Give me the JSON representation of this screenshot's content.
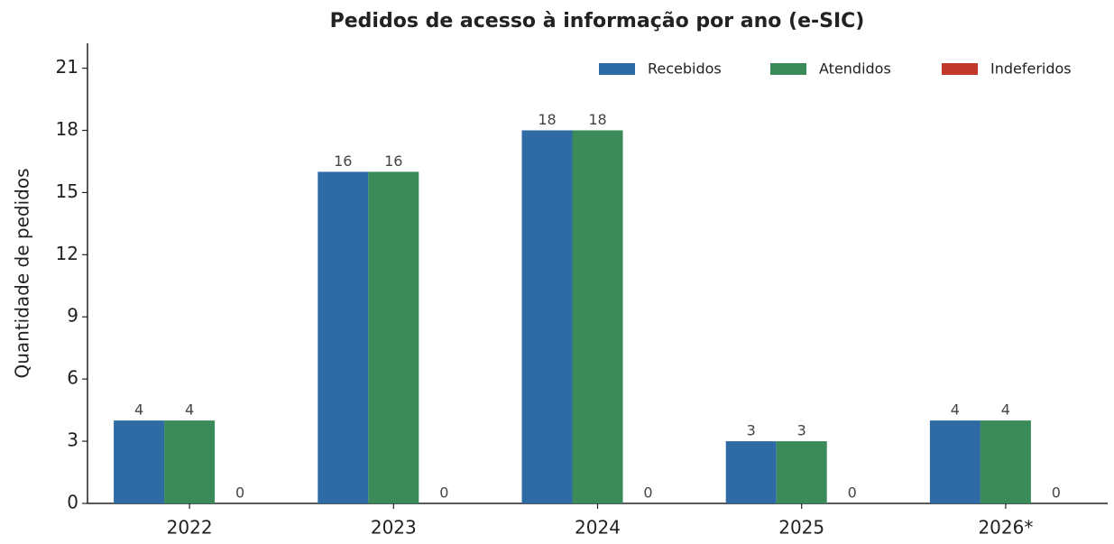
{
  "chart_data": {
    "type": "bar",
    "title": "Pedidos de acesso à informação por ano (e-SIC)",
    "y_label": "Quantidade de pedidos",
    "categories": [
      "2022",
      "2023",
      "2024",
      "2025",
      "2026*"
    ],
    "series": [
      {
        "name": "Recebidos",
        "color": "#2e6aa3",
        "values": [
          4,
          16,
          18,
          3,
          4
        ]
      },
      {
        "name": "Atendidos",
        "color": "#3a8b59",
        "values": [
          4,
          16,
          18,
          3,
          4
        ]
      },
      {
        "name": "Indeferidos",
        "color": "#c0392b",
        "values": [
          0,
          0,
          0,
          0,
          0
        ]
      }
    ],
    "ylim": [
      0,
      22.2
    ],
    "yticks": [
      0,
      3,
      6,
      9,
      12,
      15,
      18,
      21
    ],
    "legend": "upper right"
  }
}
